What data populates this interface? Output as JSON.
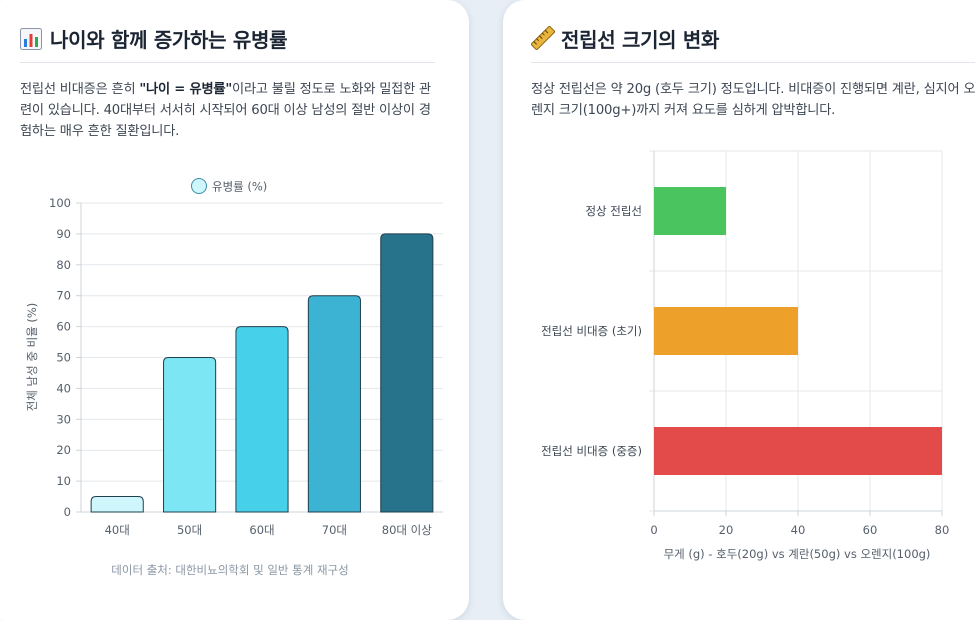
{
  "left": {
    "icon": "bar-chart-icon",
    "title": "나이와 함께 증가하는 유병률",
    "desc_pre": "전립선 비대증은 흔히 ",
    "desc_bold": "\"나이 = 유병률\"",
    "desc_mid": "이라고 불릴 정도로 노화와 밀접한 관련이 있습니다. 40대부터 서서히 시작되어 60대 이상 남성의 절반 이상이 경험하는 매우 흔한 질환입니다.",
    "source": "데이터 출처: 대한비뇨의학회 및 일반 통계 재구성"
  },
  "right": {
    "icon": "ruler-icon",
    "title": "전립선 크기의 변화",
    "desc": "정상 전립선은 약 20g (호두 크기) 정도입니다. 비대증이 진행되면 계란, 심지어 오렌지 크기(100g+)까지 커져 요도를 심하게 압박합니다."
  },
  "chart_data": [
    {
      "type": "bar",
      "orientation": "vertical",
      "title": "",
      "legend": "유병률 (%)",
      "legend_position": "top",
      "categories": [
        "40대",
        "50대",
        "60대",
        "70대",
        "80대 이상"
      ],
      "values": [
        5,
        50,
        60,
        70,
        90
      ],
      "colors": [
        "#cef6fb",
        "#7de6f5",
        "#47d0ea",
        "#3cb3d3",
        "#28738c"
      ],
      "legend_color": "#cef6fb",
      "xlabel": "",
      "ylabel": "전체 남성 중 비율 (%)",
      "ylim": [
        0,
        100
      ],
      "yticks": [
        0,
        10,
        20,
        30,
        40,
        50,
        60,
        70,
        80,
        90,
        100
      ],
      "grid": true
    },
    {
      "type": "bar",
      "orientation": "horizontal",
      "title": "",
      "categories": [
        "정상 전립선",
        "전립선 비대증 (초기)",
        "전립선 비대증 (중증)"
      ],
      "values": [
        20,
        40,
        80
      ],
      "colors": [
        "#49c45e",
        "#eea12a",
        "#e34a4a"
      ],
      "xlabel": "무게 (g) - 호두(20g) vs 계란(50g) vs 오렌지(100g)",
      "xlim": [
        0,
        80
      ],
      "xticks": [
        0,
        20,
        40,
        60,
        80
      ],
      "grid": true
    }
  ]
}
